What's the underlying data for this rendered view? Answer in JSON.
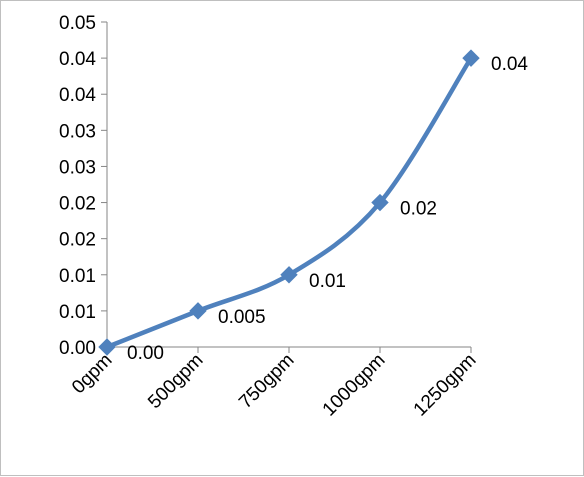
{
  "chart_data": {
    "type": "line",
    "title": "",
    "xlabel": "",
    "ylabel": "",
    "categories": [
      "0gpm",
      "500gpm",
      "750gpm",
      "1000gpm",
      "1250gpm"
    ],
    "series": [
      {
        "values": [
          0.0,
          0.005,
          0.01,
          0.02,
          0.04
        ],
        "data_labels": [
          "0.00",
          "0.005",
          "0.01",
          "0.02",
          "0.04"
        ],
        "color": "#4f81bd",
        "marker": "diamond",
        "smooth": true
      }
    ],
    "y_tick_labels": [
      "0.00",
      "0.01",
      "0.01",
      "0.02",
      "0.02",
      "0.03",
      "0.03",
      "0.04",
      "0.04",
      "0.05"
    ],
    "ylim": [
      0,
      0.045
    ],
    "grid": false,
    "legend": "none"
  }
}
